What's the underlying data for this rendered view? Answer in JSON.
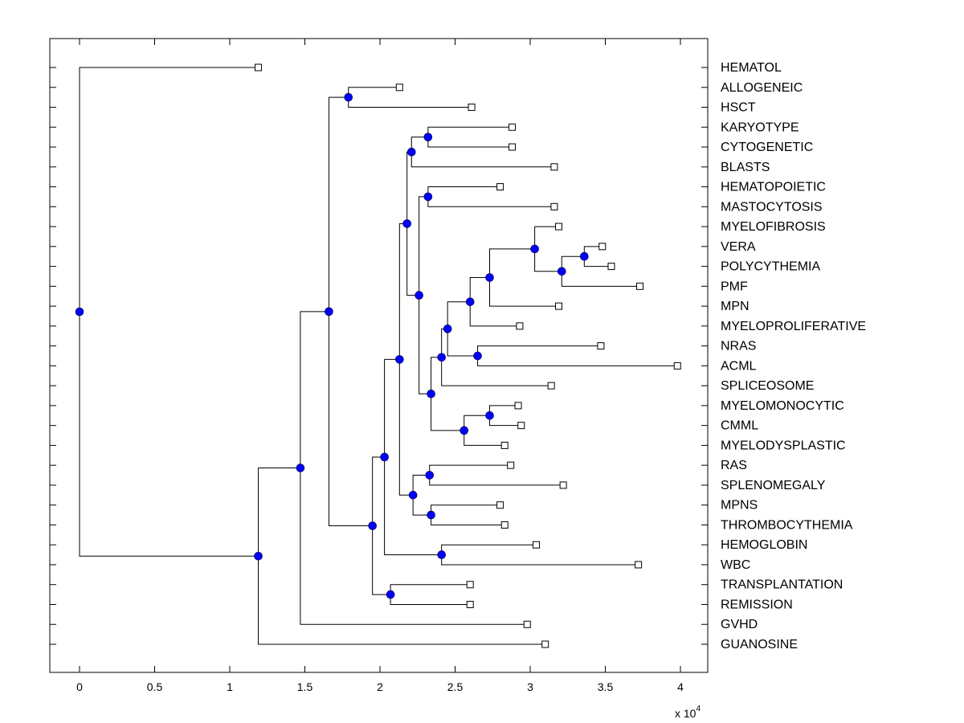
{
  "chart_data": {
    "type": "dendrogram",
    "title": "",
    "xlabel": "",
    "ylabel": "",
    "x_exponent_label": "x 10",
    "x_exponent": "4",
    "xlim": [
      -0.2,
      4.2
    ],
    "x_ticks": [
      0,
      0.5,
      1,
      1.5,
      2,
      2.5,
      3,
      3.5,
      4
    ],
    "x_tick_labels": [
      "0",
      "0.5",
      "1",
      "1.5",
      "2",
      "2.5",
      "3",
      "3.5",
      "4"
    ],
    "grid": false,
    "colors": {
      "internal_node": "#0000ff",
      "leaf_marker": "#ffffff",
      "line": "#000000"
    },
    "leaves": [
      {
        "label": "HEMATOL",
        "x": 1.19
      },
      {
        "label": "ALLOGENEIC",
        "x": 2.13
      },
      {
        "label": "HSCT",
        "x": 2.61
      },
      {
        "label": "KARYOTYPE",
        "x": 2.88
      },
      {
        "label": "CYTOGENETIC",
        "x": 2.88
      },
      {
        "label": "BLASTS",
        "x": 3.16
      },
      {
        "label": "HEMATOPOIETIC",
        "x": 2.8
      },
      {
        "label": "MASTOCYTOSIS",
        "x": 3.16
      },
      {
        "label": "MYELOFIBROSIS",
        "x": 3.19
      },
      {
        "label": "VERA",
        "x": 3.48
      },
      {
        "label": "POLYCYTHEMIA",
        "x": 3.54
      },
      {
        "label": "PMF",
        "x": 3.73
      },
      {
        "label": "MPN",
        "x": 3.19
      },
      {
        "label": "MYELOPROLIFERATIVE",
        "x": 2.93
      },
      {
        "label": "NRAS",
        "x": 3.47
      },
      {
        "label": "ACML",
        "x": 3.98
      },
      {
        "label": "SPLICEOSOME",
        "x": 3.14
      },
      {
        "label": "MYELOMONOCYTIC",
        "x": 2.92
      },
      {
        "label": "CMML",
        "x": 2.94
      },
      {
        "label": "MYELODYSPLASTIC",
        "x": 2.83
      },
      {
        "label": "RAS",
        "x": 2.87
      },
      {
        "label": "SPLENOMEGALY",
        "x": 3.22
      },
      {
        "label": "MPNS",
        "x": 2.8
      },
      {
        "label": "THROMBOCYTHEMIA",
        "x": 2.83
      },
      {
        "label": "HEMOGLOBIN",
        "x": 3.04
      },
      {
        "label": "WBC",
        "x": 3.72
      },
      {
        "label": "TRANSPLANTATION",
        "x": 2.6
      },
      {
        "label": "REMISSION",
        "x": 2.6
      },
      {
        "label": "GVHD",
        "x": 2.98
      },
      {
        "label": "GUANOSINE",
        "x": 3.1
      }
    ],
    "nodes": [
      {
        "id": "n_allo_hsct",
        "x": 1.79,
        "children": [
          "L1",
          "L2"
        ]
      },
      {
        "id": "n_karyo_cyto",
        "x": 2.32,
        "children": [
          "L3",
          "L4"
        ]
      },
      {
        "id": "n_kc_blasts",
        "x": 2.21,
        "children": [
          "n_karyo_cyto",
          "L5"
        ]
      },
      {
        "id": "n_hemato_masto",
        "x": 2.32,
        "children": [
          "L6",
          "L7"
        ]
      },
      {
        "id": "n_vera_poly",
        "x": 3.36,
        "children": [
          "L9",
          "L10"
        ]
      },
      {
        "id": "n_vp_pmf",
        "x": 3.21,
        "children": [
          "n_vera_poly",
          "L11"
        ]
      },
      {
        "id": "n_fib_vpp",
        "x": 3.03,
        "children": [
          "L8",
          "n_vp_pmf"
        ]
      },
      {
        "id": "n_fvpp_mpn",
        "x": 2.73,
        "children": [
          "n_fib_vpp",
          "L12"
        ]
      },
      {
        "id": "n_f_myeloprolif",
        "x": 2.6,
        "children": [
          "n_fvpp_mpn",
          "L13"
        ]
      },
      {
        "id": "n_nras_acml",
        "x": 2.65,
        "children": [
          "L14",
          "L15"
        ]
      },
      {
        "id": "n_mp_nras",
        "x": 2.45,
        "children": [
          "n_f_myeloprolif",
          "n_nras_acml"
        ]
      },
      {
        "id": "n_mpn_splice",
        "x": 2.41,
        "children": [
          "n_mp_nras",
          "L16"
        ]
      },
      {
        "id": "n_mono_cmml",
        "x": 2.73,
        "children": [
          "L17",
          "L18"
        ]
      },
      {
        "id": "n_mc_mds",
        "x": 2.56,
        "children": [
          "n_mono_cmml",
          "L19"
        ]
      },
      {
        "id": "n_mpnsp_mds",
        "x": 2.34,
        "children": [
          "n_mpn_splice",
          "n_mc_mds"
        ]
      },
      {
        "id": "n_hm_big",
        "x": 2.26,
        "children": [
          "n_hemato_masto",
          "n_mpnsp_mds"
        ]
      },
      {
        "id": "n_kcb_hm",
        "x": 2.18,
        "children": [
          "n_kc_blasts",
          "n_hm_big"
        ]
      },
      {
        "id": "n_ras_spleno",
        "x": 2.33,
        "children": [
          "L20",
          "L21"
        ]
      },
      {
        "id": "n_mpns_thrombo",
        "x": 2.34,
        "children": [
          "L22",
          "L23"
        ]
      },
      {
        "id": "n_rs_mt",
        "x": 2.22,
        "children": [
          "n_ras_spleno",
          "n_mpns_thrombo"
        ]
      },
      {
        "id": "n_core",
        "x": 2.13,
        "children": [
          "n_kcb_hm",
          "n_rs_mt"
        ]
      },
      {
        "id": "n_hgb_wbc",
        "x": 2.41,
        "children": [
          "L24",
          "L25"
        ]
      },
      {
        "id": "n_core_hw",
        "x": 2.03,
        "children": [
          "n_core",
          "n_hgb_wbc"
        ]
      },
      {
        "id": "n_trans_remis",
        "x": 2.07,
        "children": [
          "L26",
          "L27"
        ]
      },
      {
        "id": "n_core_tr",
        "x": 1.95,
        "children": [
          "n_core_hw",
          "n_trans_remis"
        ]
      },
      {
        "id": "n_ah_core",
        "x": 1.66,
        "children": [
          "n_allo_hsct",
          "n_core_tr"
        ]
      },
      {
        "id": "n_main_gvhd",
        "x": 1.47,
        "children": [
          "n_ah_core",
          "L28"
        ]
      },
      {
        "id": "n_main_guan",
        "x": 1.19,
        "children": [
          "n_main_gvhd",
          "L29"
        ]
      },
      {
        "id": "n_root",
        "x": 0.0,
        "children": [
          "L0",
          "n_main_guan"
        ]
      }
    ]
  }
}
